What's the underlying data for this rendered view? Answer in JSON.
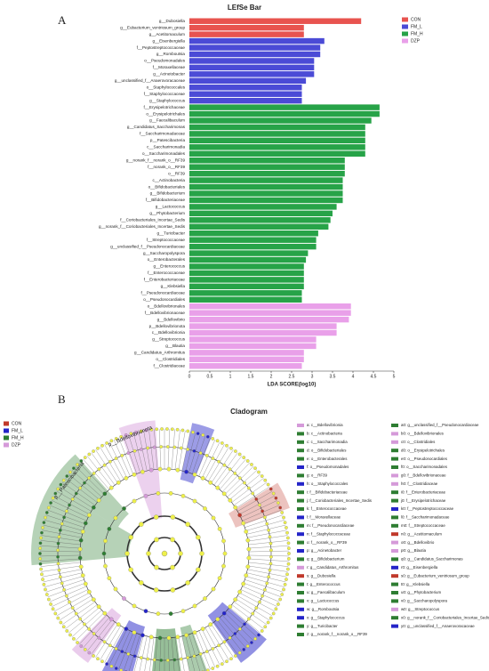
{
  "panel_labels": [
    "A",
    "B"
  ],
  "chart_data": {
    "type": "barh",
    "title": "LEfSe Bar",
    "x_label": "LDA SCORE(log10)",
    "legend": [
      {
        "name": "CON",
        "color": "#e8534f"
      },
      {
        "name": "FM_L",
        "color": "#4b4bd6"
      },
      {
        "name": "FM_H",
        "color": "#27a348"
      },
      {
        "name": "DZP",
        "color": "#e9a0e9"
      }
    ],
    "categories": [
      "g__Dubosiella",
      "g__Eubacterium_ventriosum_group",
      "g__Acetitomaculum",
      "g__Eisenbergiella",
      "f__Peptostreptococcaceae",
      "g__Romboutsia",
      "o__Pseudomonadales",
      "f__Moraxellaceae",
      "g__Acinetobacter",
      "g__unclassified_f__Anaerovoracaceae",
      "o__Staphylococcales",
      "f__Staphylococcaceae",
      "g__Staphylococcus",
      "f__Erysipelotrichaceae",
      "o__Erysipelotrichales",
      "g__Faecalibaculum",
      "g__Candidatus_Saccharimonas",
      "f__Saccharimonadaceae",
      "p__Patescibacteria",
      "c__Saccharimonadia",
      "o__Saccharimonadales",
      "g__norank_f__norank_o__RF39",
      "f__norank_o__RF39",
      "o__RF39",
      "c__Actinobacteria",
      "o__Bifidobacteriales",
      "g__Bifidobacterium",
      "f__Bifidobacteriaceae",
      "g__Lactococcus",
      "g__Phytobacterium",
      "f__Coriobacteriales_Incertae_Sedis",
      "g__norank_f__Coriobacteriales_Incertae_Sedis",
      "g__Turicibacter",
      "f__Streptococcaceae",
      "g__unclassified_f__Pseudonocardiaceae",
      "g__Saccharopolyspora",
      "o__Enterobacterales",
      "g__Enterococcus",
      "f__Enterococcaceae",
      "f__Enterobacteriaceae",
      "g__Klebsiella",
      "f__Pseudonocardiaceae",
      "o__Pseudonocardiales",
      "o__Bdellovibrionales",
      "f__Bdellovibrionaceae",
      "g__Bdellovibrio",
      "p__Bdellovibrionota",
      "c__Bdellovibrionia",
      "g__Streptococcus",
      "g__Blautia",
      "g__Candidatus_Arthromitus",
      "o__Clostridiales",
      "f__Clostridiaceae"
    ],
    "values": [
      4.2,
      2.8,
      2.8,
      3.3,
      3.2,
      3.2,
      3.05,
      3.05,
      3.05,
      2.85,
      2.75,
      2.75,
      2.75,
      4.65,
      4.65,
      4.45,
      4.3,
      4.3,
      4.3,
      4.3,
      4.3,
      3.8,
      3.8,
      3.8,
      3.75,
      3.75,
      3.75,
      3.75,
      3.6,
      3.5,
      3.45,
      3.4,
      3.15,
      3.1,
      3.1,
      2.9,
      2.85,
      2.8,
      2.8,
      2.8,
      2.8,
      2.75,
      2.75,
      3.95,
      3.95,
      3.9,
      3.6,
      3.6,
      3.1,
      3.1,
      2.8,
      2.8,
      2.75
    ],
    "bar_groups": [
      "CON",
      "CON",
      "CON",
      "FM_L",
      "FM_L",
      "FM_L",
      "FM_L",
      "FM_L",
      "FM_L",
      "FM_L",
      "FM_L",
      "FM_L",
      "FM_L",
      "FM_H",
      "FM_H",
      "FM_H",
      "FM_H",
      "FM_H",
      "FM_H",
      "FM_H",
      "FM_H",
      "FM_H",
      "FM_H",
      "FM_H",
      "FM_H",
      "FM_H",
      "FM_H",
      "FM_H",
      "FM_H",
      "FM_H",
      "FM_H",
      "FM_H",
      "FM_H",
      "FM_H",
      "FM_H",
      "FM_H",
      "FM_H",
      "FM_H",
      "FM_H",
      "FM_H",
      "FM_H",
      "FM_H",
      "FM_H",
      "DZP",
      "DZP",
      "DZP",
      "DZP",
      "DZP",
      "DZP",
      "DZP",
      "DZP",
      "DZP",
      "DZP"
    ],
    "xlim": [
      0,
      5
    ],
    "xticks": [
      0,
      0.5,
      1,
      1.5,
      2,
      2.5,
      3,
      3.5,
      4,
      4.5,
      5
    ]
  },
  "cladogram": {
    "title": "Cladogram",
    "legend": [
      {
        "name": "CON",
        "color": "#c0392b"
      },
      {
        "name": "FM_L",
        "color": "#2424c8"
      },
      {
        "name": "FM_H",
        "color": "#2e7d32"
      },
      {
        "name": "DZP",
        "color": "#d59ad9"
      }
    ],
    "labels": [
      "p__Patescibacteria",
      "p__Bdellovibrionota"
    ],
    "items": [
      {
        "label": "a: c__Bdellovibrionia",
        "group": "DZP"
      },
      {
        "label": "b: c__Actinobacteria",
        "group": "FM_H"
      },
      {
        "label": "c: c__Saccharimonadia",
        "group": "FM_H"
      },
      {
        "label": "d: o__Bifidobacteriales",
        "group": "FM_H"
      },
      {
        "label": "e: o__Enterobacterales",
        "group": "FM_H"
      },
      {
        "label": "f: o__Pseudomonadales",
        "group": "FM_L"
      },
      {
        "label": "g: o__RF39",
        "group": "FM_H"
      },
      {
        "label": "h: o__Staphylococcales",
        "group": "FM_L"
      },
      {
        "label": "i: f__Bifidobacteriaceae",
        "group": "FM_H"
      },
      {
        "label": "j: f__Coriobacteriales_Incertae_Sedis",
        "group": "FM_H"
      },
      {
        "label": "k: f__Enterococcaceae",
        "group": "FM_H"
      },
      {
        "label": "l: f__Moraxellaceae",
        "group": "FM_L"
      },
      {
        "label": "m: f__Pseudonocardiaceae",
        "group": "FM_H"
      },
      {
        "label": "n: f__Staphylococcaceae",
        "group": "FM_L"
      },
      {
        "label": "o: f__norank_o__RF39",
        "group": "FM_H"
      },
      {
        "label": "p: g__Acinetobacter",
        "group": "FM_L"
      },
      {
        "label": "q: g__Bifidobacterium",
        "group": "FM_H"
      },
      {
        "label": "r: g__Candidatus_Arthromitus",
        "group": "DZP"
      },
      {
        "label": "s: g__Dubosiella",
        "group": "CON"
      },
      {
        "label": "t: g__Enterococcus",
        "group": "FM_H"
      },
      {
        "label": "u: g__Faecalibaculum",
        "group": "FM_H"
      },
      {
        "label": "v: g__Lactococcus",
        "group": "FM_H"
      },
      {
        "label": "w: g__Romboutsia",
        "group": "FM_L"
      },
      {
        "label": "x: g__Staphylococcus",
        "group": "FM_L"
      },
      {
        "label": "y: g__Turicibacter",
        "group": "FM_H"
      },
      {
        "label": "z: g__norank_f__norank_o__RF39",
        "group": "FM_H"
      },
      {
        "label": "a0: g__unclassified_f__Pseudonocardiaceae",
        "group": "FM_H"
      },
      {
        "label": "b0: o__Bdellovibrionales",
        "group": "DZP"
      },
      {
        "label": "c0: o__Clostridiales",
        "group": "DZP"
      },
      {
        "label": "d0: o__Erysipelotrichales",
        "group": "FM_H"
      },
      {
        "label": "e0: o__Pseudonocardiales",
        "group": "FM_H"
      },
      {
        "label": "f0: o__Saccharimonadales",
        "group": "FM_H"
      },
      {
        "label": "g0: f__Bdellovibrionaceae",
        "group": "DZP"
      },
      {
        "label": "h0: f__Clostridiaceae",
        "group": "DZP"
      },
      {
        "label": "i0: f__Enterobacteriaceae",
        "group": "FM_H"
      },
      {
        "label": "j0: f__Erysipelotrichaceae",
        "group": "FM_H"
      },
      {
        "label": "k0: f__Peptostreptococcaceae",
        "group": "FM_L"
      },
      {
        "label": "l0: f__Saccharimonadaceae",
        "group": "FM_H"
      },
      {
        "label": "m0: f__Streptococcaceae",
        "group": "FM_H"
      },
      {
        "label": "n0: g__Acetitomaculum",
        "group": "CON"
      },
      {
        "label": "o0: g__Bdellovibrio",
        "group": "DZP"
      },
      {
        "label": "p0: g__Blautia",
        "group": "DZP"
      },
      {
        "label": "q0: g__Candidatus_Saccharimonas",
        "group": "FM_H"
      },
      {
        "label": "r0: g__Eisenbergiella",
        "group": "FM_L"
      },
      {
        "label": "s0: g__Eubacterium_ventriosum_group",
        "group": "CON"
      },
      {
        "label": "t0: g__Klebsiella",
        "group": "FM_H"
      },
      {
        "label": "u0: g__Phytobacterium",
        "group": "FM_H"
      },
      {
        "label": "v0: g__Saccharopolyspora",
        "group": "FM_H"
      },
      {
        "label": "w0: g__Streptococcus",
        "group": "DZP"
      },
      {
        "label": "x0: g__norank_f__Coriobacteriales_Incertae_Sedis",
        "group": "FM_H"
      },
      {
        "label": "y0: g__unclassified_f__Anaerovoracaceae",
        "group": "FM_L"
      }
    ]
  }
}
